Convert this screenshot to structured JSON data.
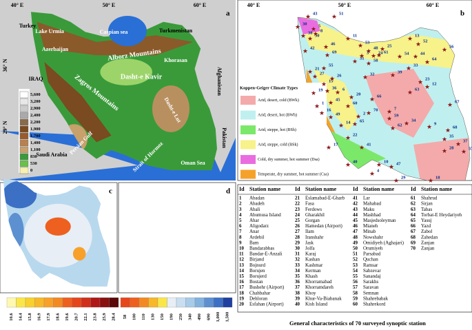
{
  "panel_a": {
    "label": "a",
    "lon_labels": [
      "40° E",
      "50° E",
      "60° E"
    ],
    "lat_labels": [
      "36° N",
      "29° N"
    ],
    "places": [
      "Turkey",
      "Caspian sea",
      "Turkmenistan",
      "Lake Urmia",
      "Azerbaijan",
      "Alborz Mountains",
      "Khorasan",
      "IRAQ",
      "Zagros Mountains",
      "Dasht-e Kavir",
      "Afghanistan",
      "Dasht-e Lut",
      "Saudi Arabia",
      "Persian Gulf",
      "Strait of Hormoz",
      "Pakistan",
      "Oman Sea"
    ],
    "elevation_legend": [
      "5,600",
      "3,200",
      "2,900",
      "2,400",
      "2,200",
      "1,900",
      "1,700",
      "1,400",
      "1,100",
      "830",
      "530",
      "0"
    ]
  },
  "panel_b": {
    "label": "b",
    "lon_labels": [
      "40° E",
      "50° E",
      "60° E"
    ],
    "legend_title": "Koppen-Geiger Climate Types",
    "legend": [
      "Arid, desert, cold (BWk)",
      "Arid, desert, hot (BWh)",
      "Arid, steppe, hot (BSh)",
      "Arid, steppe, cold (BSk)",
      "Cold, dry summer, hot summer (Dsa)",
      "Temperate, dry summer, hot summer (Csa)"
    ],
    "station_ids": [
      "43",
      "51",
      "30",
      "50",
      "11",
      "53",
      "48",
      "25",
      "13",
      "52",
      "56",
      "44",
      "64",
      "54",
      "61",
      "58",
      "31",
      "69",
      "46",
      "21",
      "27",
      "55",
      "26",
      "15",
      "36",
      "19",
      "6",
      "45",
      "1",
      "16",
      "49",
      "32",
      "39",
      "23",
      "63",
      "12",
      "60",
      "20",
      "66",
      "14",
      "65",
      "2",
      "59",
      "62",
      "7",
      "34",
      "9",
      "67",
      "68",
      "35",
      "28",
      "37",
      "57",
      "22",
      "41",
      "17",
      "40",
      "10",
      "47",
      "4",
      "29",
      "18",
      "24",
      "3",
      "8",
      "38",
      "5",
      "42",
      "70",
      "33"
    ]
  },
  "panel_c": {
    "label": "c",
    "legend": [
      "10.6",
      "14.4",
      "15.8",
      "16.9",
      "17.9",
      "18.6",
      "19.6",
      "20.7",
      "22.1",
      "23.8",
      "25.9",
      "28.4"
    ]
  },
  "panel_d": {
    "label": "d",
    "legend": [
      "58",
      "100",
      "110",
      "130",
      "150",
      "190",
      "250",
      "340",
      "490",
      "690",
      "1,000",
      "1,500"
    ]
  },
  "table": {
    "header": [
      "Id",
      "Station name",
      "Id",
      "Station name",
      "Id",
      "Station name",
      "Id",
      "Station name"
    ],
    "rows": [
      [
        "1",
        "Abadan"
      ],
      [
        "2",
        "Abadeh"
      ],
      [
        "3",
        "Abali"
      ],
      [
        "4",
        "Abumusa Island"
      ],
      [
        "5",
        "Ahar"
      ],
      [
        "6",
        "Aligodarz"
      ],
      [
        "7",
        "Anar"
      ],
      [
        "8",
        "Ardebil"
      ],
      [
        "9",
        "Bam"
      ],
      [
        "10",
        "Bandarabbas"
      ],
      [
        "11",
        "Bandar-E-Anzali"
      ],
      [
        "12",
        "Birjand"
      ],
      [
        "13",
        "Bojnurd"
      ],
      [
        "14",
        "Borujen"
      ],
      [
        "15",
        "Borujerd"
      ],
      [
        "16",
        "Bostan"
      ],
      [
        "17",
        "Bushehr (Airport)"
      ],
      [
        "18",
        "Chahbahar"
      ],
      [
        "19",
        "Dehloran"
      ],
      [
        "20",
        "Esfahan (Airport)"
      ],
      [
        "21",
        "Eslamabad-E-Gharb"
      ],
      [
        "22",
        "Fasa"
      ],
      [
        "23",
        "Ferdows"
      ],
      [
        "24",
        "Gharakhil"
      ],
      [
        "25",
        "Gorgan"
      ],
      [
        "26",
        "Hamedan (Airport)"
      ],
      [
        "27",
        "Ilam"
      ],
      [
        "28",
        "Iranshahr"
      ],
      [
        "29",
        "Jask"
      ],
      [
        "30",
        "Jolfa"
      ],
      [
        "31",
        "Karaj"
      ],
      [
        "32",
        "Kashan"
      ],
      [
        "33",
        "Kashmar"
      ],
      [
        "34",
        "Kerman"
      ],
      [
        "35",
        "Khash"
      ],
      [
        "36",
        "Khorramabad"
      ],
      [
        "37",
        "Khorramdareh"
      ],
      [
        "38",
        "Khoy"
      ],
      [
        "39",
        "Khur-Va-Biabanak"
      ],
      [
        "40",
        "Kish Island"
      ],
      [
        "41",
        "Lar"
      ],
      [
        "42",
        "Mahabad"
      ],
      [
        "43",
        "Maku"
      ],
      [
        "44",
        "Mashhad"
      ],
      [
        "45",
        "Masjedsoleyman"
      ],
      [
        "46",
        "Mianeh"
      ],
      [
        "47",
        "Minab"
      ],
      [
        "48",
        "Nowshahr"
      ],
      [
        "49",
        "Omidiyeh (Aghajari)"
      ],
      [
        "50",
        "Orumiyeh"
      ],
      [
        "51",
        "Parsabad"
      ],
      [
        "52",
        "Quchan"
      ],
      [
        "53",
        "Ramsar"
      ],
      [
        "54",
        "Sabzevar"
      ],
      [
        "55",
        "Sanandaj"
      ],
      [
        "56",
        "Sarakhs"
      ],
      [
        "57",
        "Saravan"
      ],
      [
        "58",
        "Semnan"
      ],
      [
        "59",
        "Shahrebabak"
      ],
      [
        "60",
        "Shahrekord"
      ],
      [
        "61",
        "Shahrud"
      ],
      [
        "62",
        "Sirjan"
      ],
      [
        "63",
        "Tabas"
      ],
      [
        "64",
        "Torbat-E Heydariyeh"
      ],
      [
        "65",
        "Yasuj"
      ],
      [
        "66",
        "Yazd"
      ],
      [
        "67",
        "Zabol"
      ],
      [
        "68",
        "Zahedan"
      ],
      [
        "69",
        "Zanjan"
      ],
      [
        "70",
        "Zanjan"
      ]
    ]
  },
  "caption": "General characteristics of 70 surveyed synoptic station"
}
